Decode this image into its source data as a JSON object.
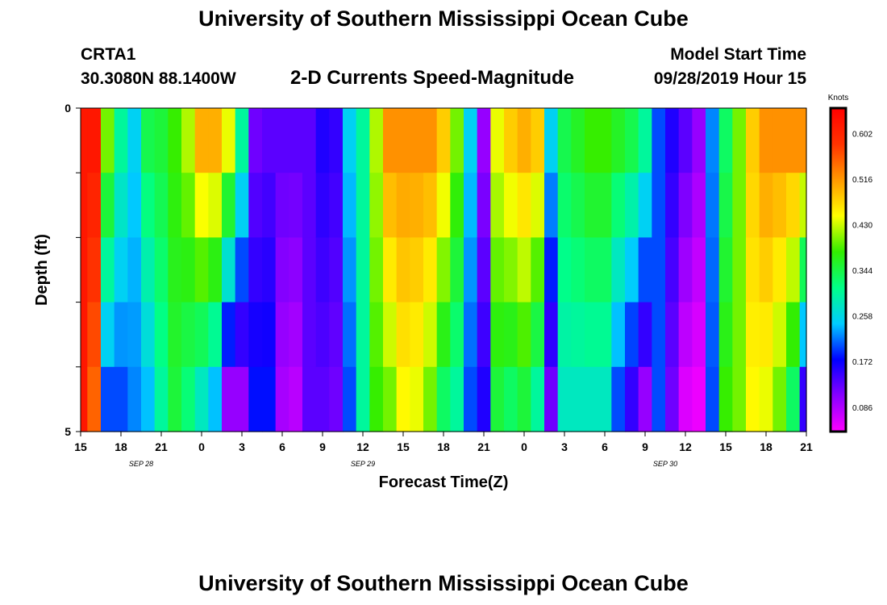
{
  "header": {
    "title": "University of Southern Mississippi Ocean Cube",
    "station_id": "CRTA1",
    "station_coords": "30.3080N 88.1400W",
    "chart_title": "2-D Currents Speed-Magnitude",
    "model_start_label": "Model Start Time",
    "model_start_value": "09/28/2019 Hour 15"
  },
  "footer": {
    "title": "University of Southern Mississippi Ocean Cube"
  },
  "colors": {
    "colormap": [
      "#ff00ff",
      "#8800ff",
      "#0000ff",
      "#00ccff",
      "#00ff88",
      "#33ee00",
      "#ffff00",
      "#ff9900",
      "#ff3300",
      "#ff0000"
    ]
  },
  "chart_data": {
    "type": "heatmap",
    "xlabel": "Forecast Time(Z)",
    "ylabel": "Depth (ft)",
    "x_tick_labels": [
      "15",
      "18",
      "21",
      "0",
      "3",
      "6",
      "9",
      "12",
      "15",
      "18",
      "21",
      "0",
      "3",
      "6",
      "9",
      "12",
      "15",
      "18",
      "21"
    ],
    "y_tick_labels": [
      "0",
      "5"
    ],
    "ylim": [
      0,
      5
    ],
    "date_labels": [
      {
        "text": "SEP 28",
        "at_hour": 4.5
      },
      {
        "text": "SEP 29",
        "at_hour": 21
      },
      {
        "text": "SEP 30",
        "at_hour": 43.5
      }
    ],
    "colorbar": {
      "title": "Knots",
      "ticks": [
        0.602,
        0.516,
        0.43,
        0.344,
        0.258,
        0.172,
        0.086
      ],
      "range": [
        0.04,
        0.65
      ]
    },
    "depth_bins": 5,
    "hours": [
      0,
      1,
      2,
      3,
      4,
      5,
      6,
      7,
      8,
      9,
      10,
      11,
      12,
      13,
      14,
      15,
      16,
      17,
      18,
      19,
      20,
      21,
      22,
      23,
      24,
      25,
      26,
      27,
      28,
      29,
      30,
      31,
      32,
      33,
      34,
      35,
      36,
      37,
      38,
      39,
      40,
      41,
      42,
      43,
      44,
      45,
      46,
      47,
      48,
      49,
      50,
      51,
      52,
      53,
      54
    ],
    "surface_speed": [
      0.62,
      0.62,
      0.4,
      0.3,
      0.25,
      0.34,
      0.35,
      0.38,
      0.42,
      0.5,
      0.5,
      0.44,
      0.3,
      0.12,
      0.13,
      0.13,
      0.13,
      0.13,
      0.16,
      0.15,
      0.25,
      0.3,
      0.42,
      0.52,
      0.52,
      0.52,
      0.52,
      0.48,
      0.4,
      0.25,
      0.1,
      0.44,
      0.48,
      0.5,
      0.48,
      0.25,
      0.34,
      0.36,
      0.38,
      0.38,
      0.36,
      0.34,
      0.3,
      0.2,
      0.16,
      0.13,
      0.1,
      0.22,
      0.33,
      0.4,
      0.48,
      0.52,
      0.52,
      0.52,
      0.52
    ],
    "bottom_speed": [
      0.62,
      0.55,
      0.2,
      0.2,
      0.22,
      0.24,
      0.3,
      0.35,
      0.32,
      0.28,
      0.24,
      0.1,
      0.1,
      0.18,
      0.18,
      0.09,
      0.08,
      0.13,
      0.13,
      0.12,
      0.2,
      0.3,
      0.38,
      0.4,
      0.45,
      0.44,
      0.4,
      0.33,
      0.3,
      0.2,
      0.16,
      0.35,
      0.33,
      0.35,
      0.3,
      0.12,
      0.28,
      0.28,
      0.28,
      0.28,
      0.2,
      0.15,
      0.1,
      0.2,
      0.12,
      0.06,
      0.05,
      0.2,
      0.38,
      0.4,
      0.45,
      0.44,
      0.4,
      0.33,
      0.15
    ]
  }
}
